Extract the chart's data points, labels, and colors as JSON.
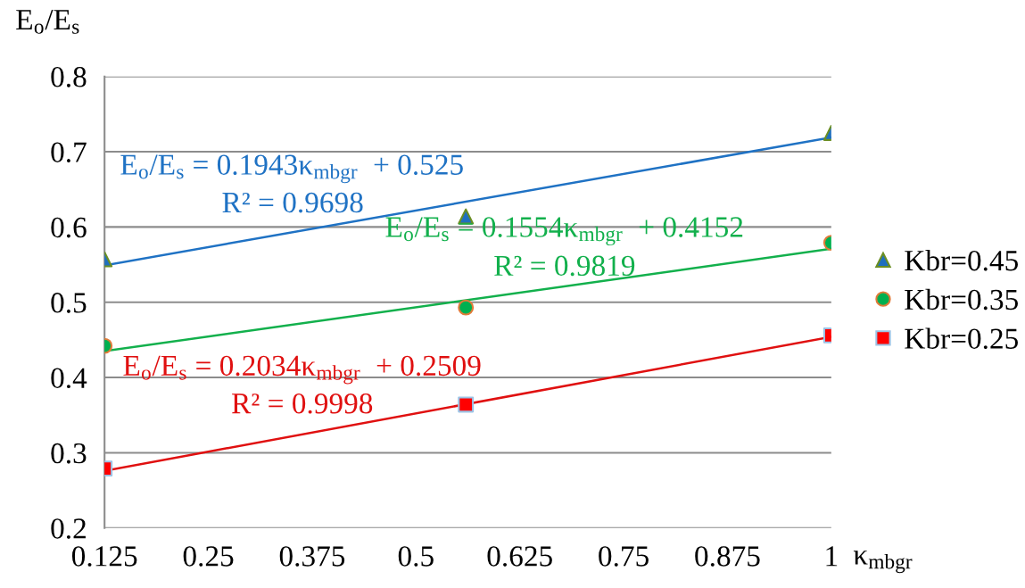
{
  "chart_data": {
    "type": "scatter",
    "xlabel": "κ$_{mbgr}$",
    "ylabel": "E$_{o}$/E$_{s}$",
    "xlim": [
      0.125,
      1
    ],
    "xticks": [
      0.125,
      0.25,
      0.375,
      0.5,
      0.625,
      0.75,
      0.875,
      1
    ],
    "ylim": [
      0.2,
      0.8
    ],
    "yticks": [
      0.2,
      0.3,
      0.4,
      0.5,
      0.6,
      0.7,
      0.8
    ],
    "grid": "y",
    "legend": "right",
    "series": [
      {
        "type": "line",
        "color": "#1f72c4",
        "x": [
          0.125,
          1
        ],
        "values": [
          0.549,
          0.719
        ],
        "marker": "none"
      },
      {
        "type": "line",
        "color": "#12b04c",
        "x": [
          0.125,
          1
        ],
        "values": [
          0.435,
          0.571
        ],
        "marker": "none"
      },
      {
        "type": "line",
        "color": "#e01010",
        "x": [
          0.125,
          1
        ],
        "values": [
          0.276,
          0.454
        ],
        "marker": "none"
      },
      {
        "name": "Kbr=0.45",
        "color": "#1f6fbf",
        "x": [
          0.125,
          0.56,
          1
        ],
        "values": [
          0.557,
          0.614,
          0.725
        ],
        "marker": "triangle"
      },
      {
        "name": "Kbr=0.35",
        "color": "#00b050",
        "x": [
          0.125,
          0.56,
          1
        ],
        "values": [
          0.442,
          0.493,
          0.579
        ],
        "marker": "circle"
      },
      {
        "name": "Kbr=0.25",
        "color": "#ff0000",
        "x": [
          0.125,
          0.56,
          1
        ],
        "values": [
          0.279,
          0.364,
          0.456
        ],
        "marker": "square"
      }
    ],
    "annotations": [
      "E$_{o}$/E$_{s}$ = 0.1943κ$_{mbgr}$  + 0.525",
      "R² = 0.9698",
      "E$_{o}$/E$_{s}$ = 0.1554κ$_{mbgr}$  + 0.4152",
      "R² = 0.9819",
      "E$_{o}$/E$_{s}$ = 0.2034κ$_{mbgr}$  + 0.2509",
      "R² = 0.9998"
    ]
  }
}
